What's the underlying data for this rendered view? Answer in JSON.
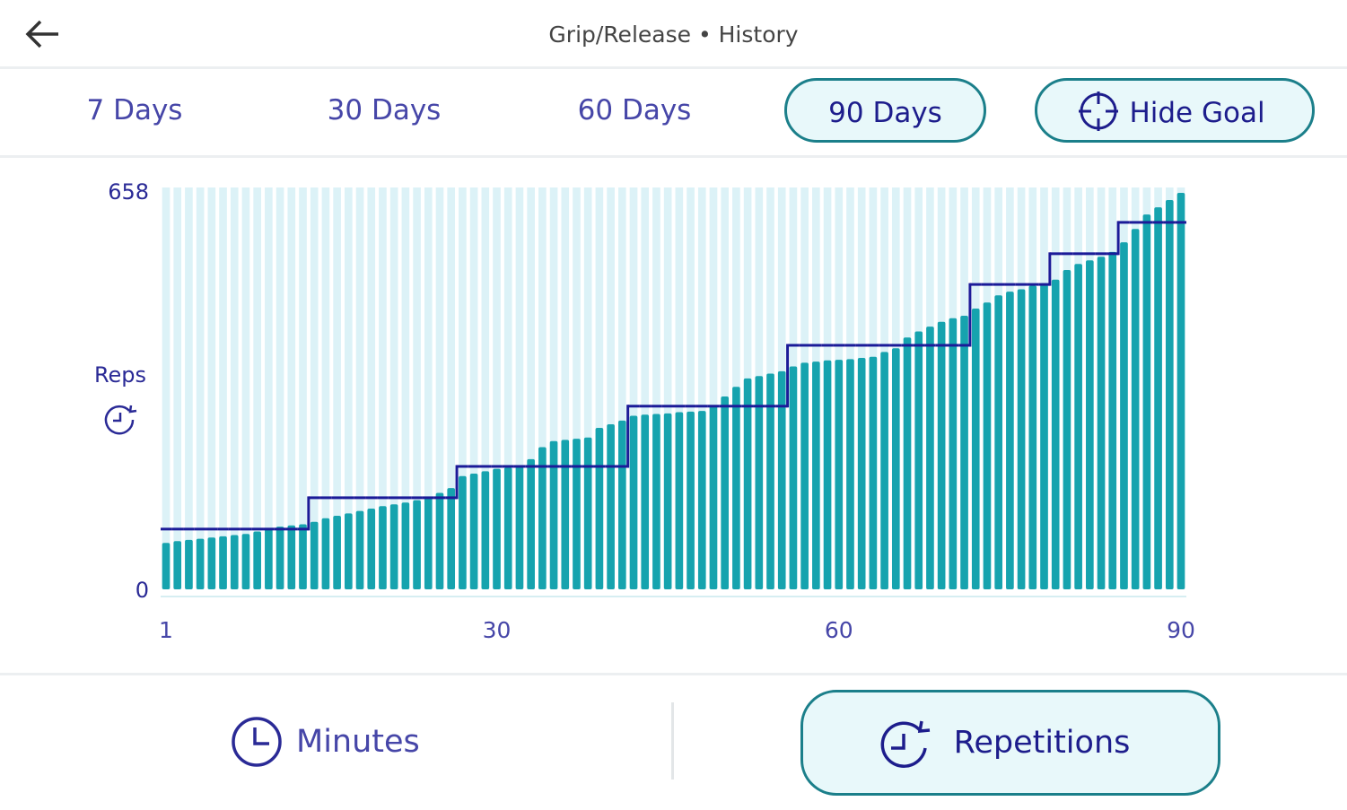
{
  "header": {
    "title": "Grip/Release • History"
  },
  "range_tabs": [
    "7 Days",
    "30 Days",
    "60 Days",
    "90 Days"
  ],
  "goal_button": "Hide Goal",
  "bottom_tabs": [
    "Minutes",
    "Repetitions"
  ],
  "chart_data": {
    "type": "bar",
    "y_label": "Reps",
    "categories": [
      "1",
      null,
      null,
      null,
      null,
      null,
      null,
      null,
      null,
      null,
      null,
      null,
      null,
      null,
      null,
      null,
      null,
      null,
      null,
      null,
      null,
      null,
      null,
      null,
      null,
      null,
      null,
      null,
      null,
      "30",
      null,
      null,
      null,
      null,
      null,
      null,
      null,
      null,
      null,
      null,
      null,
      null,
      null,
      null,
      null,
      null,
      null,
      null,
      null,
      null,
      null,
      null,
      null,
      null,
      null,
      null,
      null,
      null,
      null,
      "60",
      null,
      null,
      null,
      null,
      null,
      null,
      null,
      null,
      null,
      null,
      null,
      null,
      null,
      null,
      null,
      null,
      null,
      null,
      null,
      null,
      null,
      null,
      null,
      null,
      null,
      null,
      null,
      null,
      null,
      "90"
    ],
    "values": [
      77,
      80,
      82,
      84,
      86,
      88,
      90,
      92,
      96,
      100,
      104,
      106,
      108,
      112,
      118,
      122,
      126,
      130,
      134,
      138,
      141,
      144,
      148,
      152,
      160,
      168,
      188,
      192,
      196,
      200,
      202,
      204,
      216,
      236,
      246,
      248,
      250,
      252,
      268,
      274,
      280,
      288,
      290,
      291,
      292,
      294,
      295,
      296,
      306,
      320,
      336,
      350,
      354,
      358,
      362,
      370,
      376,
      378,
      380,
      381,
      382,
      384,
      386,
      394,
      400,
      418,
      428,
      436,
      444,
      450,
      454,
      466,
      476,
      488,
      494,
      498,
      504,
      508,
      514,
      530,
      540,
      546,
      552,
      560,
      576,
      598,
      622,
      634,
      646,
      658
    ],
    "goal": [
      100,
      100,
      100,
      100,
      100,
      100,
      100,
      100,
      100,
      100,
      100,
      100,
      100,
      152,
      152,
      152,
      152,
      152,
      152,
      152,
      152,
      152,
      152,
      152,
      152,
      152,
      204,
      204,
      204,
      204,
      204,
      204,
      204,
      204,
      204,
      204,
      204,
      204,
      204,
      204,
      204,
      304,
      304,
      304,
      304,
      304,
      304,
      304,
      304,
      304,
      304,
      304,
      304,
      304,
      304,
      405,
      405,
      405,
      405,
      405,
      405,
      405,
      405,
      405,
      405,
      405,
      405,
      405,
      405,
      405,
      405,
      506,
      506,
      506,
      506,
      506,
      506,
      506,
      557,
      557,
      557,
      557,
      557,
      557,
      609,
      609,
      609,
      609,
      609,
      609
    ],
    "color": "#16a3ae",
    "goal_color": "#1b1b98",
    "ylim": [
      0,
      658
    ],
    "yticks": [
      0,
      658
    ]
  }
}
